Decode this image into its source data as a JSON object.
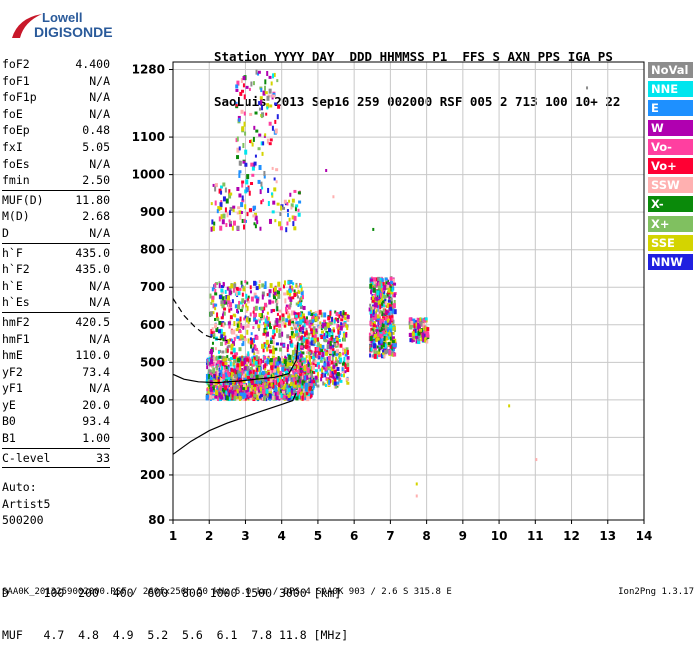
{
  "logo": {
    "line1": "Lowell",
    "line2": "DIGISONDE"
  },
  "header": {
    "line1": "Station YYYY DAY  DDD HHMMSS P1  FFS S AXN PPS IGA PS",
    "line2": "SaoLuis 2013 Sep16 259 002000 RSF 005 2 713 100 10+ 22"
  },
  "params": [
    {
      "name": "foF2",
      "value": "4.400"
    },
    {
      "name": "foF1",
      "value": "N/A"
    },
    {
      "name": "foF1p",
      "value": "N/A"
    },
    {
      "name": "foE",
      "value": "N/A"
    },
    {
      "name": "foEp",
      "value": "0.48"
    },
    {
      "name": "fxI",
      "value": "5.05"
    },
    {
      "name": "foEs",
      "value": "N/A"
    },
    {
      "name": "fmin",
      "value": "2.50",
      "sep": true
    },
    {
      "name": "MUF(D)",
      "value": "11.80"
    },
    {
      "name": "M(D)",
      "value": "2.68"
    },
    {
      "name": "D",
      "value": "N/A",
      "sep": true
    },
    {
      "name": "h`F",
      "value": "435.0"
    },
    {
      "name": "h`F2",
      "value": "435.0"
    },
    {
      "name": "h`E",
      "value": "N/A"
    },
    {
      "name": "h`Es",
      "value": "N/A",
      "sep": true
    },
    {
      "name": "hmF2",
      "value": "420.5"
    },
    {
      "name": "hmF1",
      "value": "N/A"
    },
    {
      "name": "hmE",
      "value": "110.0"
    },
    {
      "name": "yF2",
      "value": "73.4"
    },
    {
      "name": "yF1",
      "value": "N/A"
    },
    {
      "name": "yE",
      "value": "20.0"
    },
    {
      "name": "B0",
      "value": "93.4"
    },
    {
      "name": "B1",
      "value": "1.00",
      "sep": true
    },
    {
      "name": "C-level",
      "value": "33",
      "sep": true
    }
  ],
  "auto": {
    "l1": "Auto:",
    "l2": "Artist5",
    "l3": "500200"
  },
  "legend": [
    {
      "label": "NoVal",
      "color": "#8c8c8c"
    },
    {
      "label": "NNE",
      "color": "#00e5ee"
    },
    {
      "label": "E",
      "color": "#1e90ff"
    },
    {
      "label": "W",
      "color": "#b000b0"
    },
    {
      "label": "Vo-",
      "color": "#ff3fa0"
    },
    {
      "label": "Vo+",
      "color": "#ff0033"
    },
    {
      "label": "SSW",
      "color": "#ffb0b0"
    },
    {
      "label": "X-",
      "color": "#0a8a0a"
    },
    {
      "label": "X+",
      "color": "#80c060"
    },
    {
      "label": "SSE",
      "color": "#d4d400"
    },
    {
      "label": "NNW",
      "color": "#2020e0"
    }
  ],
  "footer": {
    "d_line": "D     100  200  400  600  800 1000 1500 3000 [km]",
    "muf_line": "MUF   4.7  4.8  4.9  5.2  5.6  6.1  7.8 11.8 [MHz]",
    "file_line": "SAA0K_2013259002000.RSF / 260fx256h 50 kHz 5.0 km / DPS-4 SAA0K 903 / 2.6 S 315.8 E",
    "version": "Ion2Png 1.3.17"
  },
  "chart_data": {
    "type": "scatter",
    "title": "",
    "xlabel": "",
    "ylabel": "",
    "xlim": [
      1,
      14
    ],
    "ylim": [
      80,
      1300
    ],
    "x_ticks": [
      1,
      2,
      3,
      4,
      5,
      6,
      7,
      8,
      9,
      10,
      11,
      12,
      13,
      14
    ],
    "y_ticks": [
      80,
      200,
      300,
      400,
      500,
      600,
      700,
      800,
      900,
      1000,
      1100,
      1280
    ],
    "grid": true,
    "dense_regions": [
      {
        "x": [
          1.9,
          4.8
        ],
        "y": [
          410,
          520
        ],
        "density": "high"
      },
      {
        "x": [
          2.0,
          4.6
        ],
        "y": [
          500,
          720
        ],
        "density": "medium"
      },
      {
        "x": [
          4.3,
          5.8
        ],
        "y": [
          440,
          640
        ],
        "density": "medium"
      },
      {
        "x": [
          6.4,
          7.1
        ],
        "y": [
          520,
          730
        ],
        "density": "medium"
      },
      {
        "x": [
          7.5,
          8.0
        ],
        "y": [
          560,
          620
        ],
        "density": "low"
      },
      {
        "x": [
          2.0,
          4.5
        ],
        "y": [
          860,
          980
        ],
        "density": "low"
      },
      {
        "x": [
          2.7,
          3.9
        ],
        "y": [
          980,
          1280
        ],
        "density": "low"
      }
    ],
    "sparse_points": [
      {
        "x": 12.4,
        "y": 1235
      },
      {
        "x": 7.7,
        "y": 180
      },
      {
        "x": 7.7,
        "y": 148
      },
      {
        "x": 11.0,
        "y": 245
      },
      {
        "x": 10.25,
        "y": 388
      },
      {
        "x": 6.5,
        "y": 858
      },
      {
        "x": 5.2,
        "y": 1015
      },
      {
        "x": 5.4,
        "y": 945
      }
    ],
    "profile_curve": [
      {
        "x": 1.0,
        "y": 255
      },
      {
        "x": 1.5,
        "y": 290
      },
      {
        "x": 2.0,
        "y": 318
      },
      {
        "x": 2.5,
        "y": 338
      },
      {
        "x": 3.0,
        "y": 355
      },
      {
        "x": 3.5,
        "y": 372
      },
      {
        "x": 4.0,
        "y": 388
      },
      {
        "x": 4.3,
        "y": 398
      },
      {
        "x": 4.4,
        "y": 418
      }
    ],
    "trace_curve": [
      {
        "x": 1.0,
        "y": 468
      },
      {
        "x": 1.3,
        "y": 455
      },
      {
        "x": 1.7,
        "y": 448
      },
      {
        "x": 2.2,
        "y": 446
      },
      {
        "x": 2.8,
        "y": 450
      },
      {
        "x": 3.3,
        "y": 455
      },
      {
        "x": 3.8,
        "y": 460
      },
      {
        "x": 4.2,
        "y": 470
      },
      {
        "x": 4.4,
        "y": 505
      },
      {
        "x": 4.45,
        "y": 555
      }
    ],
    "dashed_curve": [
      {
        "x": 1.0,
        "y": 670
      },
      {
        "x": 1.3,
        "y": 625
      },
      {
        "x": 1.6,
        "y": 595
      },
      {
        "x": 1.9,
        "y": 572
      },
      {
        "x": 2.2,
        "y": 562
      },
      {
        "x": 2.5,
        "y": 558
      }
    ]
  }
}
